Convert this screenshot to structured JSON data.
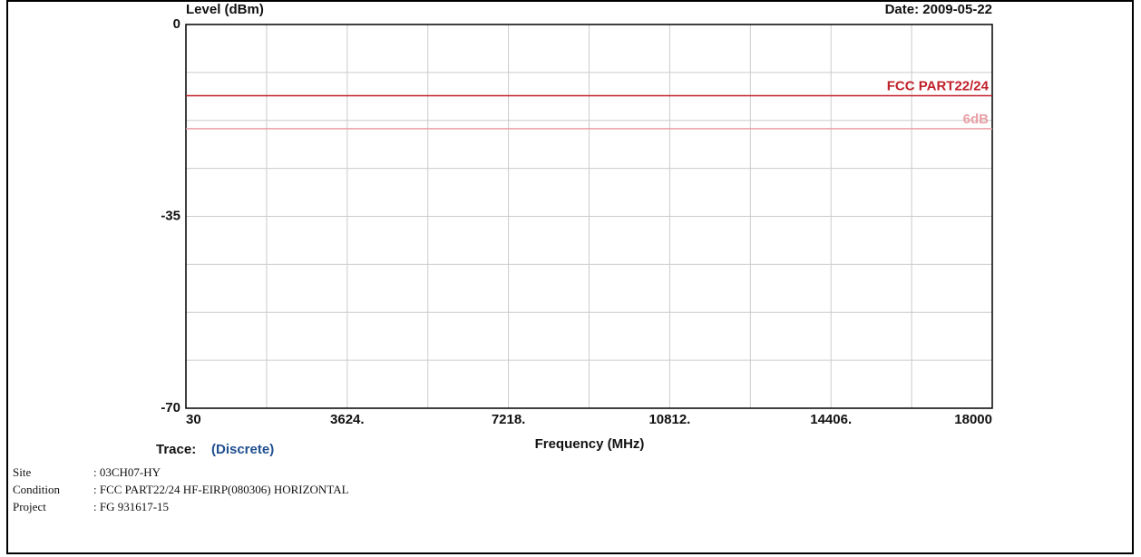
{
  "chart_data": {
    "type": "line",
    "y_label": "Level (dBm)",
    "date": "Date: 2009-05-22",
    "x_label": "Frequency (MHz)",
    "trace_label": "Trace:",
    "trace_value": "(Discrete)",
    "xlim": [
      30,
      18000
    ],
    "xticks": [
      30,
      {
        "value": 3624,
        "label": "3624."
      },
      {
        "value": 7218,
        "label": "7218."
      },
      {
        "value": 10812,
        "label": "10812."
      },
      {
        "value": 14406,
        "label": "14406."
      },
      18000
    ],
    "ylim": [
      -70,
      0
    ],
    "yticks": [
      0,
      -35,
      -70
    ],
    "grid": true,
    "series": [
      {
        "name": "FCC PART22/24",
        "color": "#c0202a",
        "x": [
          30,
          18000
        ],
        "values": [
          -13,
          -13
        ]
      },
      {
        "name": "6dB",
        "color": "#e8a0a6",
        "x": [
          30,
          18000
        ],
        "values": [
          -19,
          -19
        ]
      }
    ],
    "info": [
      {
        "label": "Site",
        "value": ": 03CH07-HY"
      },
      {
        "label": "Condition",
        "value": ": FCC PART22/24 HF-EIRP(080306) HORIZONTAL"
      },
      {
        "label": "Project",
        "value": ": FG 931617-15"
      }
    ]
  }
}
